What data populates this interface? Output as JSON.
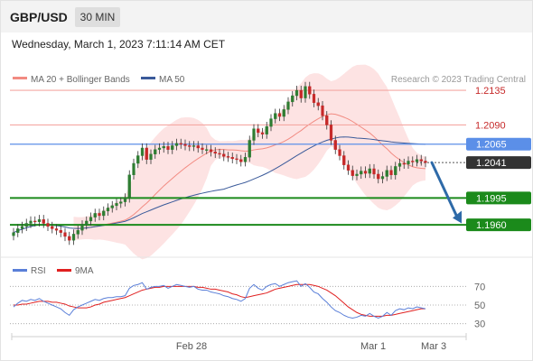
{
  "header": {
    "symbol": "GBP/USD",
    "timeframe": "30 MIN",
    "datetime": "Wednesday, March 1, 2023 7:11:14 AM CET"
  },
  "legend": {
    "items": [
      {
        "label": "MA 20 + Bollinger Bands",
        "color": "#f28b82"
      },
      {
        "label": "MA 50",
        "color": "#3a5a9a"
      }
    ],
    "credit": "Research © 2023 Trading Central"
  },
  "colors": {
    "bull": "#2e7d32",
    "bear": "#c62828",
    "resistance": "#f4a8a3",
    "support": "#1b8a1b",
    "pivot": "#5b8fe8",
    "current": "#333333",
    "band_fill": "#fcd9d9",
    "ma20": "#f28b82",
    "ma50": "#3a5a9a",
    "rsi": "#5a7fd8",
    "rsi_ma": "#e02020",
    "arrow": "#2e6aa8"
  },
  "chart_data": [
    {
      "type": "candlestick",
      "ylim": [
        1.1925,
        1.2175
      ],
      "x_ticks": [
        "Feb 28",
        "Mar 1",
        "Mar 3"
      ],
      "levels": [
        {
          "value": 1.2135,
          "label": "1.2135",
          "kind": "resistance"
        },
        {
          "value": 1.209,
          "label": "1.2090",
          "kind": "resistance"
        },
        {
          "value": 1.2065,
          "label": "1.2065",
          "kind": "pivot"
        },
        {
          "value": 1.2041,
          "label": "1.2041",
          "kind": "current"
        },
        {
          "value": 1.1995,
          "label": "1.1995",
          "kind": "support"
        },
        {
          "value": 1.196,
          "label": "1.1960",
          "kind": "support"
        }
      ],
      "close": [
        1.195,
        1.1955,
        1.1958,
        1.1962,
        1.1965,
        1.1964,
        1.1967,
        1.1962,
        1.1958,
        1.1955,
        1.1953,
        1.195,
        1.1945,
        1.194,
        1.1948,
        1.1953,
        1.196,
        1.1965,
        1.197,
        1.1975,
        1.1972,
        1.1978,
        1.1982,
        1.1985,
        1.1988,
        1.199,
        1.1995,
        1.2025,
        1.204,
        1.205,
        1.206,
        1.2045,
        1.2052,
        1.2058,
        1.206,
        1.2062,
        1.2058,
        1.2063,
        1.2066,
        1.2065,
        1.2063,
        1.2062,
        1.2063,
        1.206,
        1.2058,
        1.2058,
        1.2055,
        1.2053,
        1.2052,
        1.2049,
        1.2048,
        1.2046,
        1.2045,
        1.2042,
        1.2048,
        1.207,
        1.2085,
        1.208,
        1.2078,
        1.2088,
        1.2098,
        1.2105,
        1.2101,
        1.211,
        1.212,
        1.2128,
        1.2135,
        1.2125,
        1.214,
        1.213,
        1.2119,
        1.2115,
        1.2102,
        1.209,
        1.207,
        1.2058,
        1.205,
        1.2038,
        1.2031,
        1.2024,
        1.2026,
        1.203,
        1.2027,
        1.2033,
        1.2026,
        1.202,
        1.2023,
        1.2031,
        1.2025,
        1.2036,
        1.204,
        1.2039,
        1.2043,
        1.2042,
        1.2045,
        1.2043,
        1.2041
      ],
      "series": [
        {
          "name": "MA 20 + Bollinger Bands"
        },
        {
          "name": "MA 50"
        }
      ]
    },
    {
      "type": "line",
      "ylim": [
        20,
        80
      ],
      "y_ticks": [
        70,
        50,
        30
      ],
      "series": [
        {
          "name": "RSI",
          "values": [
            48,
            52,
            55,
            54,
            56,
            55,
            57,
            54,
            52,
            50,
            48,
            46,
            42,
            39,
            45,
            48,
            50,
            52,
            54,
            56,
            55,
            57,
            58,
            58,
            59,
            59,
            60,
            68,
            71,
            72,
            74,
            67,
            69,
            70,
            70,
            71,
            68,
            70,
            72,
            71,
            70,
            69,
            70,
            67,
            66,
            66,
            64,
            63,
            62,
            60,
            59,
            57,
            56,
            54,
            57,
            68,
            72,
            68,
            66,
            70,
            72,
            73,
            70,
            72,
            74,
            75,
            76,
            70,
            73,
            69,
            64,
            62,
            57,
            53,
            48,
            44,
            42,
            39,
            37,
            36,
            37,
            39,
            38,
            41,
            38,
            36,
            38,
            42,
            39,
            44,
            46,
            45,
            47,
            46,
            48,
            47,
            46
          ]
        },
        {
          "name": "9MA",
          "values": [
            50,
            50,
            51,
            51,
            52,
            53,
            54,
            54,
            54,
            53,
            53,
            52,
            51,
            49,
            48,
            47,
            47,
            47,
            48,
            50,
            51,
            53,
            54,
            55,
            56,
            57,
            58,
            60,
            62,
            64,
            66,
            67,
            68,
            69,
            69,
            70,
            70,
            70,
            70,
            70,
            70,
            70,
            70,
            69,
            69,
            68,
            67,
            67,
            66,
            65,
            64,
            62,
            61,
            59,
            58,
            59,
            60,
            61,
            62,
            63,
            65,
            67,
            68,
            69,
            70,
            71,
            72,
            72,
            72,
            72,
            71,
            70,
            68,
            66,
            63,
            60,
            56,
            52,
            48,
            45,
            42,
            40,
            39,
            38,
            38,
            38,
            38,
            39,
            39,
            40,
            41,
            42,
            43,
            44,
            45,
            46,
            46
          ]
        }
      ]
    }
  ]
}
